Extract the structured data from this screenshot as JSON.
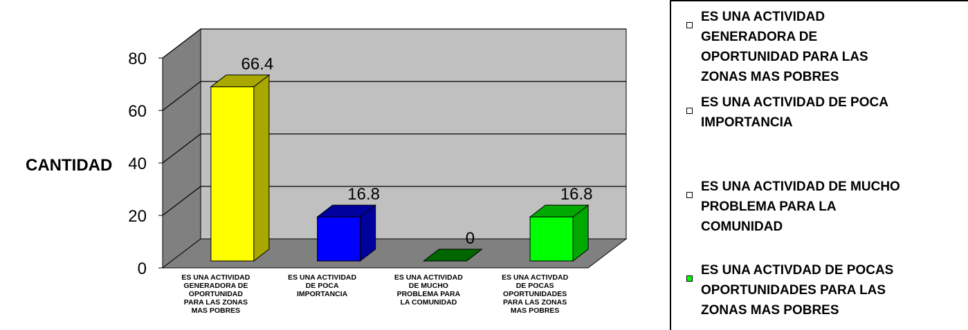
{
  "chart_data": {
    "type": "bar",
    "categories": [
      "ES UNA ACTIVIDAD GENERADORA DE OPORTUNIDAD PARA LAS ZONAS MAS POBRES",
      "ES UNA ACTIVIDAD DE POCA IMPORTANCIA",
      "ES UNA ACTIVIDAD DE MUCHO PROBLEMA PARA LA COMUNIDAD",
      "ES UNA ACTIVDAD DE POCAS OPORTUNIDADES PARA LAS ZONAS MAS POBRES"
    ],
    "category_label_lines": [
      [
        "ES UNA ACTIVIDAD",
        "GENERADORA DE",
        "OPORTUNIDAD",
        "PARA LAS ZONAS",
        "MAS POBRES"
      ],
      [
        "ES UNA ACTIVIDAD",
        "DE POCA",
        "IMPORTANCIA"
      ],
      [
        "ES UNA ACTIVIDAD",
        "DE MUCHO",
        "PROBLEMA PARA",
        "LA COMUNIDAD"
      ],
      [
        "ES UNA ACTIVDAD",
        "DE POCAS",
        "OPORTUNIDADES",
        "PARA LAS ZONAS",
        "MAS POBRES"
      ]
    ],
    "values": [
      66.4,
      16.8,
      0,
      16.8
    ],
    "data_labels": [
      "66.4",
      "16.8",
      "0",
      "16.8"
    ],
    "ylabel": "CANTIDAD",
    "ylim": [
      0,
      80
    ],
    "yticks": [
      "0",
      "20",
      "40",
      "60",
      "80"
    ],
    "grid": true,
    "style": "3d",
    "colors": [
      "#ffff00",
      "#0000ff",
      "#006600",
      "#00ff00"
    ],
    "side_colors": [
      "#a8a800",
      "#00009c",
      "#003300",
      "#00a800"
    ],
    "wall_color": "#c0c0c0",
    "side_wall_color": "#808080",
    "legend_position": "right"
  },
  "legend": {
    "items": [
      {
        "label": "ES UNA ACTIVIDAD GENERADORA DE OPORTUNIDAD PARA LAS ZONAS MAS POBRES",
        "lines": [
          "ES UNA ACTIVIDAD",
          "GENERADORA DE",
          "OPORTUNIDAD PARA LAS",
          "ZONAS MAS POBRES"
        ],
        "swatch_color": "#ffffff"
      },
      {
        "label": "ES UNA ACTIVIDAD DE POCA IMPORTANCIA",
        "lines": [
          "ES UNA ACTIVIDAD DE POCA",
          "IMPORTANCIA"
        ],
        "swatch_color": "#ffffff"
      },
      {
        "label": "ES UNA ACTIVIDAD DE MUCHO PROBLEMA PARA LA COMUNIDAD",
        "lines": [
          "ES UNA ACTIVIDAD DE MUCHO",
          "PROBLEMA PARA LA",
          "COMUNIDAD"
        ],
        "swatch_color": "#ffffff"
      },
      {
        "label": "ES UNA ACTIVDAD DE POCAS OPORTUNIDADES PARA LAS ZONAS MAS POBRES",
        "lines": [
          "ES UNA ACTIVDAD DE POCAS",
          "OPORTUNIDADES PARA LAS",
          "ZONAS MAS POBRES"
        ],
        "swatch_color": "#00ff00"
      }
    ]
  }
}
